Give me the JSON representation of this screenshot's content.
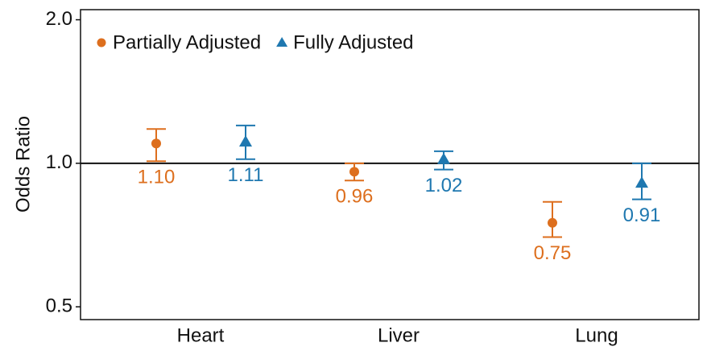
{
  "chart_data": {
    "type": "errorpoint",
    "y_label": "Odds Ratio",
    "categories": [
      "Heart",
      "Liver",
      "Lung"
    ],
    "log_y": true,
    "ylim": [
      0.47,
      2.1
    ],
    "yticks": [
      {
        "value": 2,
        "label": "2.0"
      },
      {
        "value": 1,
        "label": "1.0"
      },
      0.5
    ],
    "reference_line": 1,
    "legend": "top-left",
    "series": [
      {
        "name": "Partially Adjusted",
        "color": "#dd6f1e",
        "marker": "circle",
        "values": [
          1.1,
          0.96,
          0.75
        ],
        "value_labels": [
          "1.10",
          "0.96",
          "0.75"
        ],
        "lower": [
          1.01,
          0.92,
          0.7
        ],
        "upper": [
          1.18,
          1.0,
          0.83
        ]
      },
      {
        "name": "Fully Adjusted",
        "color": "#1f78b0",
        "marker": "triangle",
        "values": [
          1.11,
          1.02,
          0.91
        ],
        "value_labels": [
          "1.11",
          "1.02",
          "0.91"
        ],
        "lower": [
          1.02,
          0.97,
          0.84
        ],
        "upper": [
          1.2,
          1.06,
          1.0
        ]
      }
    ]
  }
}
